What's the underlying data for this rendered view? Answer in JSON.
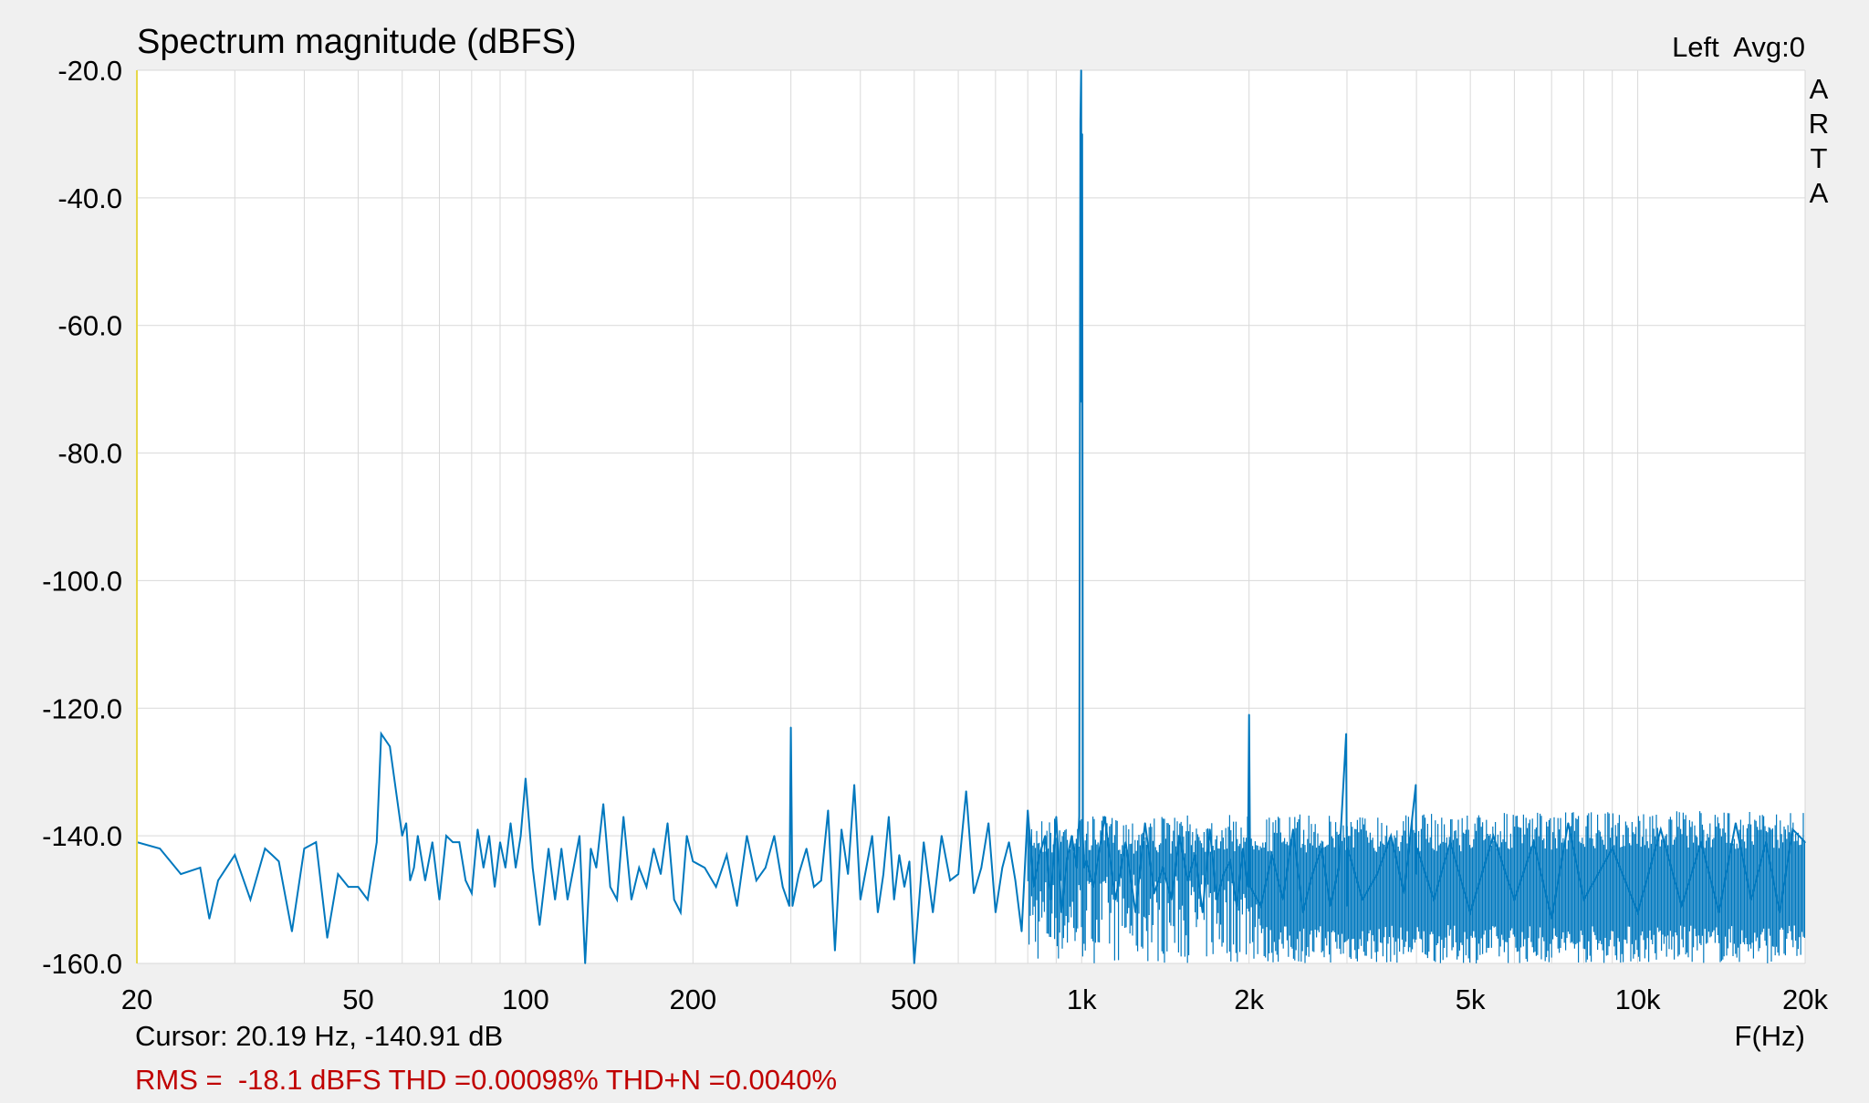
{
  "header": {
    "title": "Spectrum magnitude (dBFS)",
    "channel_info": "Left  Avg:0",
    "brand_letters": [
      "A",
      "R",
      "T",
      "A"
    ]
  },
  "footer": {
    "cursor": "Cursor: 20.19 Hz, -140.91 dB",
    "stats": "RMS =  -18.1 dBFS THD =0.00098% THD+N =0.0040%"
  },
  "colors": {
    "background": "#f0f0f0",
    "plot_area": "#ffffff",
    "grid": "#d9d9d9",
    "trace": "#0078be",
    "stats_text": "#c00000",
    "left_axis_line": "#e6d84a"
  },
  "chart_data": {
    "type": "line",
    "title": "Spectrum magnitude (dBFS)",
    "xlabel": "F(Hz)",
    "ylabel": "",
    "x_scale": "log",
    "xlim": [
      20,
      20000
    ],
    "ylim": [
      -160,
      -20
    ],
    "grid": true,
    "y_ticks": [
      {
        "value": -20,
        "label": "-20.0"
      },
      {
        "value": -40,
        "label": "-40.0"
      },
      {
        "value": -60,
        "label": "-60.0"
      },
      {
        "value": -80,
        "label": "-80.0"
      },
      {
        "value": -100,
        "label": "-100.0"
      },
      {
        "value": -120,
        "label": "-120.0"
      },
      {
        "value": -140,
        "label": "-140.0"
      },
      {
        "value": -160,
        "label": "-160.0"
      }
    ],
    "x_ticks": [
      {
        "value": 20,
        "label": "20"
      },
      {
        "value": 50,
        "label": "50"
      },
      {
        "value": 100,
        "label": "100"
      },
      {
        "value": 200,
        "label": "200"
      },
      {
        "value": 500,
        "label": "500"
      },
      {
        "value": 1000,
        "label": "1k"
      },
      {
        "value": 2000,
        "label": "2k"
      },
      {
        "value": 5000,
        "label": "5k"
      },
      {
        "value": 10000,
        "label": "10k"
      },
      {
        "value": 20000,
        "label": "20k"
      }
    ],
    "series": [
      {
        "x": [
          20,
          22,
          24,
          26,
          27,
          28,
          30,
          32,
          34,
          35,
          36,
          38,
          40,
          42,
          44,
          46,
          48,
          50,
          52,
          54,
          55,
          57,
          60,
          61,
          62,
          63,
          64,
          66,
          68,
          70,
          72,
          74,
          76,
          78,
          80,
          82,
          84,
          86,
          88,
          90,
          92,
          94,
          96,
          98,
          100,
          103,
          106,
          110,
          113,
          116,
          119,
          122,
          125,
          128,
          131,
          134,
          138,
          142,
          146,
          150,
          155,
          160,
          165,
          170,
          175,
          180,
          185,
          190,
          195,
          200,
          210,
          220,
          230,
          240,
          250,
          260,
          270,
          280,
          290,
          298,
          300,
          302,
          310,
          320,
          330,
          340,
          350,
          360,
          370,
          380,
          390,
          400,
          410,
          420,
          430,
          440,
          450,
          460,
          470,
          480,
          490,
          500,
          520,
          540,
          560,
          580,
          600,
          620,
          640,
          660,
          680,
          700,
          720,
          740,
          760,
          780,
          800,
          820,
          840,
          860,
          880,
          900,
          920,
          940,
          960,
          980,
          990,
          995,
          998,
          1000,
          1002,
          1005,
          1010,
          1020,
          1050,
          1100,
          1150,
          1200,
          1250,
          1300,
          1350,
          1400,
          1450,
          1500,
          1550,
          1600,
          1650,
          1700,
          1750,
          1800,
          1850,
          1900,
          1950,
          1990,
          2000,
          2010,
          2100,
          2200,
          2300,
          2400,
          2500,
          2600,
          2700,
          2800,
          2900,
          2990,
          3000,
          3010,
          3200,
          3400,
          3600,
          3800,
          3990,
          4000,
          4010,
          4300,
          4600,
          5000,
          5500,
          6000,
          6500,
          7000,
          7500,
          8000,
          9000,
          10000,
          11000,
          12000,
          13000,
          14000,
          15000,
          16000,
          17000,
          18000,
          19000,
          20000
        ],
        "y": [
          -141,
          -142,
          -146,
          -145,
          -153,
          -147,
          -143,
          -150,
          -142,
          -143,
          -144,
          -155,
          -142,
          -141,
          -156,
          -146,
          -148,
          -148,
          -150,
          -141,
          -124,
          -126,
          -140,
          -138,
          -147,
          -145,
          -140,
          -147,
          -141,
          -150,
          -140,
          -141,
          -141,
          -147,
          -149,
          -139,
          -145,
          -140,
          -148,
          -141,
          -145,
          -138,
          -145,
          -140,
          -131,
          -145,
          -154,
          -142,
          -150,
          -142,
          -150,
          -145,
          -140,
          -160,
          -142,
          -145,
          -135,
          -148,
          -150,
          -137,
          -150,
          -145,
          -148,
          -142,
          -146,
          -138,
          -150,
          -152,
          -140,
          -144,
          -145,
          -148,
          -143,
          -151,
          -140,
          -147,
          -145,
          -140,
          -148,
          -151,
          -123,
          -151,
          -146,
          -142,
          -148,
          -147,
          -136,
          -158,
          -139,
          -146,
          -132,
          -150,
          -145,
          -140,
          -152,
          -146,
          -137,
          -150,
          -143,
          -148,
          -144,
          -160,
          -141,
          -152,
          -140,
          -147,
          -146,
          -133,
          -149,
          -145,
          -138,
          -152,
          -145,
          -141,
          -147,
          -155,
          -136,
          -148,
          -143,
          -140,
          -150,
          -137,
          -152,
          -144,
          -140,
          -145,
          -137,
          -28,
          -20,
          -72,
          -30,
          -140,
          -145,
          -144,
          -148,
          -137,
          -150,
          -141,
          -152,
          -138,
          -149,
          -145,
          -150,
          -140,
          -147,
          -143,
          -152,
          -139,
          -150,
          -146,
          -144,
          -151,
          -142,
          -148,
          -121,
          -148,
          -151,
          -143,
          -150,
          -139,
          -152,
          -146,
          -142,
          -151,
          -145,
          -124,
          -151,
          -142,
          -150,
          -146,
          -140,
          -149,
          -132,
          -146,
          -142,
          -150,
          -141,
          -152,
          -140,
          -150,
          -141,
          -153,
          -138,
          -150,
          -142,
          -152,
          -139,
          -151,
          -141,
          -152,
          -138,
          -150,
          -141,
          -152,
          -139,
          -141
        ]
      }
    ]
  }
}
